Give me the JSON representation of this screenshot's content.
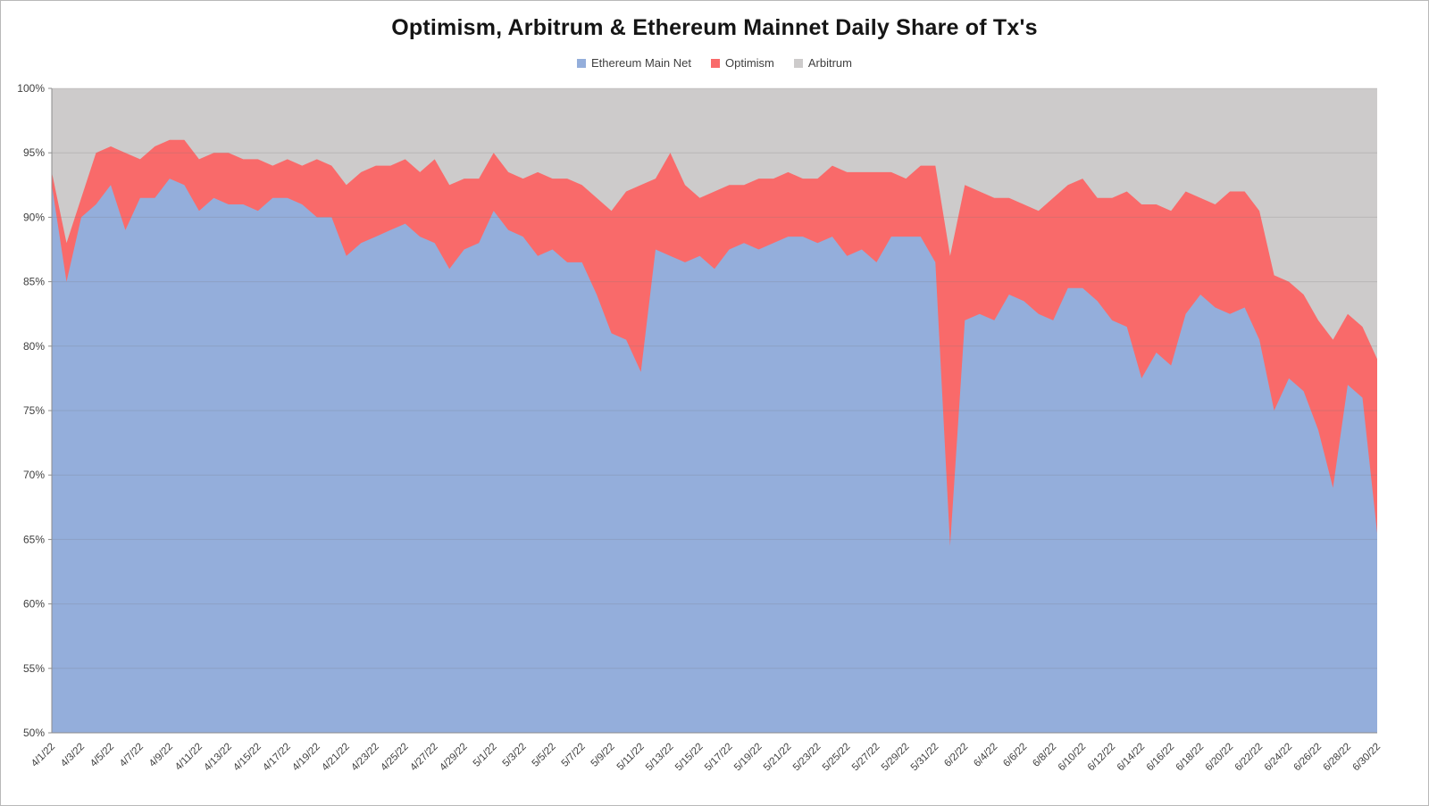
{
  "chart_data": {
    "type": "area",
    "stacked": true,
    "title": "Optimism, Arbitrum & Ethereum Mainnet Daily Share of Tx's",
    "xlabel": "",
    "ylabel": "",
    "ylim": [
      50,
      100
    ],
    "ytick_step": 5,
    "ytick_labels": [
      "100%",
      "95%",
      "90%",
      "85%",
      "80%",
      "75%",
      "70%",
      "65%",
      "60%",
      "55%",
      "50%"
    ],
    "x_label_step": 2,
    "grid": true,
    "legend_position": "top",
    "colors": {
      "ethereum": "#94aedb",
      "optimism": "#f96a6a",
      "arbitrum": "#cdcbcb",
      "gridline": "rgba(120,120,120,0.22)",
      "axis": "#8c8c8c",
      "tick_text": "#3f3f3f"
    },
    "categories": [
      "4/1/22",
      "4/2/22",
      "4/3/22",
      "4/4/22",
      "4/5/22",
      "4/6/22",
      "4/7/22",
      "4/8/22",
      "4/9/22",
      "4/10/22",
      "4/11/22",
      "4/12/22",
      "4/13/22",
      "4/14/22",
      "4/15/22",
      "4/16/22",
      "4/17/22",
      "4/18/22",
      "4/19/22",
      "4/20/22",
      "4/21/22",
      "4/22/22",
      "4/23/22",
      "4/24/22",
      "4/25/22",
      "4/26/22",
      "4/27/22",
      "4/28/22",
      "4/29/22",
      "4/30/22",
      "5/1/22",
      "5/2/22",
      "5/3/22",
      "5/4/22",
      "5/5/22",
      "5/6/22",
      "5/7/22",
      "5/8/22",
      "5/9/22",
      "5/10/22",
      "5/11/22",
      "5/12/22",
      "5/13/22",
      "5/14/22",
      "5/15/22",
      "5/16/22",
      "5/17/22",
      "5/18/22",
      "5/19/22",
      "5/20/22",
      "5/21/22",
      "5/22/22",
      "5/23/22",
      "5/24/22",
      "5/25/22",
      "5/26/22",
      "5/27/22",
      "5/28/22",
      "5/29/22",
      "5/30/22",
      "5/31/22",
      "6/1/22",
      "6/2/22",
      "6/3/22",
      "6/4/22",
      "6/5/22",
      "6/6/22",
      "6/7/22",
      "6/8/22",
      "6/9/22",
      "6/10/22",
      "6/11/22",
      "6/12/22",
      "6/13/22",
      "6/14/22",
      "6/15/22",
      "6/16/22",
      "6/17/22",
      "6/18/22",
      "6/19/22",
      "6/20/22",
      "6/21/22",
      "6/22/22",
      "6/23/22",
      "6/24/22",
      "6/25/22",
      "6/26/22",
      "6/27/22",
      "6/28/22",
      "6/29/22",
      "6/30/22"
    ],
    "series": [
      {
        "name": "Ethereum Main Net",
        "values": [
          92.5,
          85,
          90,
          91,
          92.5,
          89,
          91.5,
          91.5,
          93,
          92.5,
          90.5,
          91.5,
          91,
          91,
          90.5,
          91.5,
          91.5,
          91,
          90,
          90,
          87,
          88,
          88.5,
          89,
          89.5,
          88.5,
          88,
          86,
          87.5,
          88,
          90.5,
          89,
          88.5,
          87,
          87.5,
          86.5,
          86.5,
          84,
          81,
          80.5,
          78,
          87.5,
          87,
          86.5,
          87,
          86,
          87.5,
          88,
          87.5,
          88,
          88.5,
          88.5,
          88,
          88.5,
          87,
          87.5,
          86.5,
          88.5,
          88.5,
          88.5,
          86.5,
          64.5,
          82,
          82.5,
          82,
          84,
          83.5,
          82.5,
          82,
          84.5,
          84.5,
          83.5,
          82,
          81.5,
          77.5,
          79.5,
          78.5,
          82.5,
          84,
          83,
          82.5,
          83,
          80.5,
          75,
          77.5,
          76.5,
          73.5,
          69,
          77,
          76,
          65.5
        ]
      },
      {
        "name": "Optimism",
        "values": [
          1,
          3,
          1.5,
          4,
          3,
          6,
          3,
          4,
          3,
          3.5,
          4,
          3.5,
          4,
          3.5,
          4,
          2.5,
          3,
          3,
          4.5,
          4,
          5.5,
          5.5,
          5.5,
          5,
          5,
          5,
          6.5,
          6.5,
          5.5,
          5,
          4.5,
          4.5,
          4.5,
          6.5,
          5.5,
          6.5,
          6,
          7.5,
          9.5,
          11.5,
          14.5,
          5.5,
          8,
          6,
          4.5,
          6,
          5,
          4.5,
          5.5,
          5,
          5,
          4.5,
          5,
          5.5,
          6.5,
          6,
          7,
          5,
          4.5,
          5.5,
          7.5,
          22.5,
          10.5,
          9.5,
          9.5,
          7.5,
          7.5,
          8,
          9.5,
          8,
          8.5,
          8,
          9.5,
          10.5,
          13.5,
          11.5,
          12,
          9.5,
          7.5,
          8,
          9.5,
          9,
          10,
          10.5,
          7.5,
          7.5,
          8.5,
          11.5,
          5.5,
          5.5,
          13.5
        ]
      },
      {
        "name": "Arbitrum",
        "values": [
          6.5,
          12,
          8.5,
          5,
          4.5,
          5,
          5.5,
          4.5,
          4,
          4,
          5.5,
          5,
          5,
          5.5,
          5.5,
          6,
          5.5,
          6,
          5.5,
          6,
          7.5,
          6.5,
          6,
          6,
          5.5,
          6.5,
          5.5,
          7.5,
          7,
          7,
          5,
          6.5,
          7,
          6.5,
          7,
          7,
          7.5,
          8.5,
          9.5,
          8,
          7.5,
          7,
          5,
          7.5,
          8.5,
          8,
          7.5,
          7.5,
          7,
          7,
          6.5,
          7,
          7,
          6,
          6.5,
          6.5,
          6.5,
          6.5,
          7,
          6,
          6,
          13,
          7.5,
          8,
          8.5,
          8.5,
          9,
          9.5,
          8.5,
          7.5,
          7,
          8.5,
          8.5,
          8,
          9,
          9,
          9.5,
          8,
          8.5,
          9,
          8,
          8,
          9.5,
          14.5,
          15,
          16,
          18,
          19.5,
          17.5,
          18.5,
          21
        ]
      }
    ]
  }
}
